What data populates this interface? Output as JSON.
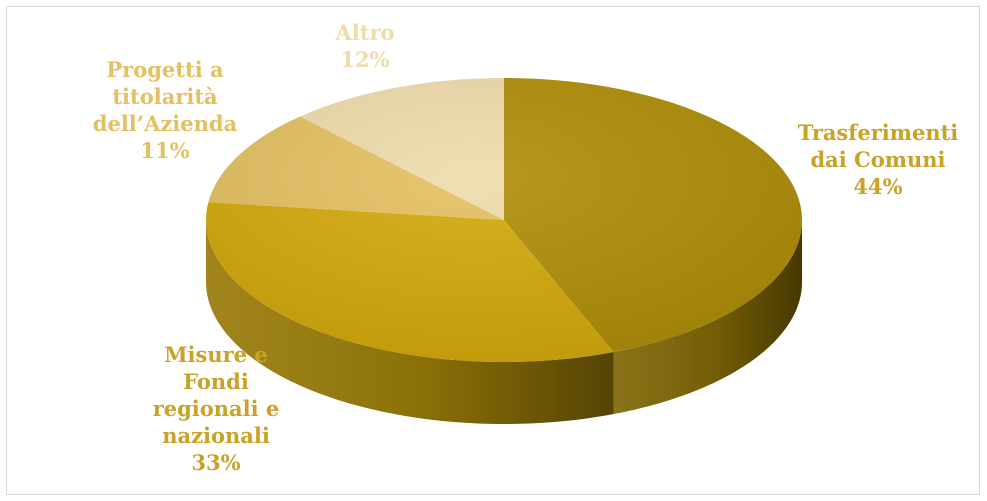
{
  "chart_data": {
    "type": "pie",
    "title": "",
    "slices": [
      {
        "name": "Trasferimenti dai Comuni",
        "label_lines": [
          "Trasferimenti",
          "dai Comuni"
        ],
        "value": 44,
        "value_label": "44%",
        "color": "#b08d06"
      },
      {
        "name": "Misure e Fondi regionali e nazionali",
        "label_lines": [
          "Misure e",
          "Fondi",
          "regionali e",
          "nazionali"
        ],
        "value": 33,
        "value_label": "33%",
        "color": "#d4a90b"
      },
      {
        "name": "Progetti a titolarità dell’Azienda",
        "label_lines": [
          "Progetti a",
          "titolarità",
          "dell’Azienda"
        ],
        "value": 11,
        "value_label": "11%",
        "color": "#e4c060"
      },
      {
        "name": "Altro",
        "label_lines": [
          "Altro"
        ],
        "value": 12,
        "value_label": "12%",
        "color": "#efdcaa"
      }
    ],
    "legend": "none",
    "label_color": "#c9a227"
  }
}
